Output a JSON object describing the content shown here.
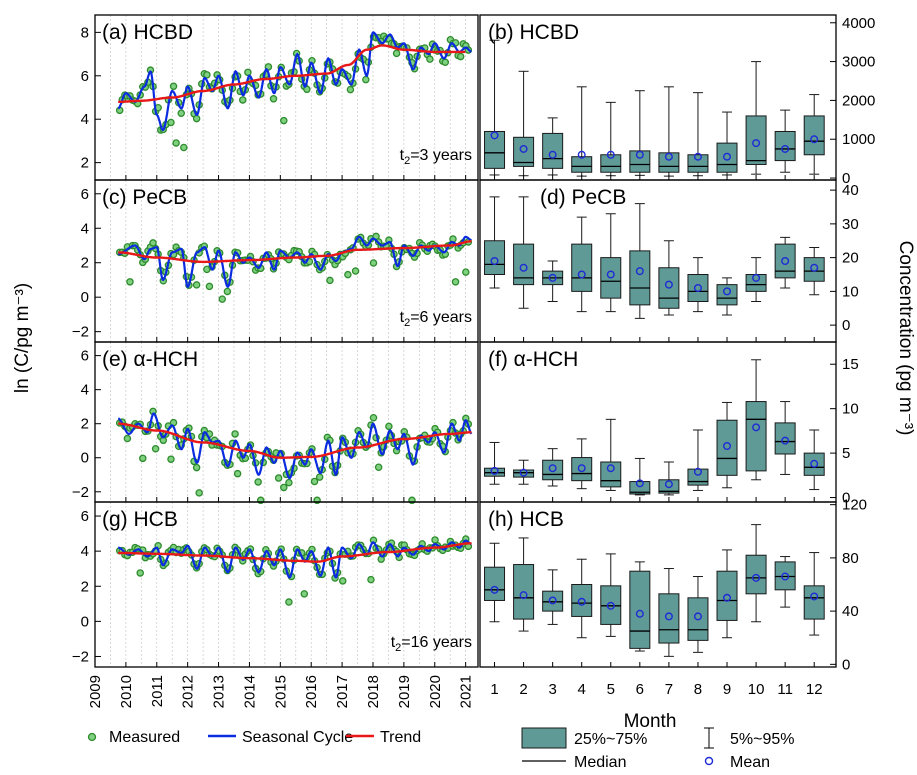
{
  "chart_data": [
    {
      "id": "a",
      "type": "line",
      "panel_label": "(a) HCBD",
      "ylabel": "ln (C/pg m⁻³)",
      "ylim": [
        1.2,
        8.8
      ],
      "yticks": [
        2,
        4,
        6,
        8
      ],
      "xlim": [
        2009,
        2021.4
      ],
      "annotation": "t₂=3 years",
      "trend_nodes": {
        "x": [
          2009.75,
          2010.5,
          2011.5,
          2012.5,
          2013.5,
          2014.5,
          2015.5,
          2016.5,
          2017.2,
          2017.8,
          2018.3,
          2019,
          2020,
          2021
        ],
        "y": [
          4.8,
          4.85,
          5.0,
          5.3,
          5.6,
          5.85,
          6.0,
          6.1,
          6.5,
          7.2,
          7.4,
          7.2,
          7.1,
          7.1
        ]
      },
      "seasonal_nodes": {
        "x": [
          2009.75,
          2010,
          2010.3,
          2010.6,
          2010.8,
          2011.0,
          2011.2,
          2011.5,
          2011.8,
          2012.0,
          2012.3,
          2012.55,
          2012.8,
          2013.0,
          2013.3,
          2013.55,
          2013.8,
          2014.0,
          2014.3,
          2014.55,
          2014.8,
          2015.0,
          2015.3,
          2015.55,
          2015.8,
          2016.0,
          2016.3,
          2016.55,
          2016.8,
          2017.0,
          2017.3,
          2017.55,
          2017.8,
          2018.0,
          2018.3,
          2018.55,
          2018.8,
          2019.0,
          2019.3,
          2019.55,
          2019.8,
          2020.0,
          2020.3,
          2020.55,
          2020.8,
          2021.0,
          2021.2
        ],
        "y": [
          4.5,
          5.2,
          4.8,
          5.5,
          6.2,
          4.2,
          3.5,
          5.3,
          4.5,
          5.5,
          4.2,
          5.9,
          5.3,
          6.0,
          4.5,
          6.2,
          5.1,
          6.0,
          5.0,
          6.3,
          5.2,
          6.4,
          5.6,
          7.0,
          5.5,
          6.6,
          5.2,
          6.8,
          5.6,
          6.3,
          5.6,
          7.2,
          6.0,
          8.0,
          7.5,
          7.9,
          7.3,
          7.5,
          6.3,
          7.3,
          7.0,
          7.5,
          6.8,
          7.5,
          7.1,
          7.3,
          7.1
        ]
      },
      "measured_noise": 0.32
    },
    {
      "id": "c",
      "type": "line",
      "panel_label": "(c) PeCB",
      "ylim": [
        -2.6,
        6.8
      ],
      "yticks": [
        -2,
        0,
        2,
        4,
        6
      ],
      "xlim": [
        2009,
        2021.4
      ],
      "annotation": "t₂=6 years",
      "trend_nodes": {
        "x": [
          2009.75,
          2011,
          2012.5,
          2014,
          2015.5,
          2016.5,
          2017.5,
          2019,
          2020.5,
          2021.2
        ],
        "y": [
          2.6,
          2.3,
          2.05,
          2.15,
          2.3,
          2.4,
          2.75,
          2.85,
          3.0,
          3.25
        ]
      },
      "seasonal_nodes": {
        "x": [
          2009.75,
          2010.3,
          2010.6,
          2010.8,
          2011.0,
          2011.2,
          2011.5,
          2011.8,
          2012.0,
          2012.3,
          2012.55,
          2012.8,
          2013.0,
          2013.3,
          2013.55,
          2013.8,
          2014.0,
          2014.3,
          2014.55,
          2014.8,
          2015.0,
          2015.3,
          2015.55,
          2015.8,
          2016.0,
          2016.3,
          2016.55,
          2016.8,
          2017.0,
          2017.3,
          2017.55,
          2017.8,
          2018.0,
          2018.3,
          2018.55,
          2018.8,
          2019.0,
          2019.3,
          2019.55,
          2019.8,
          2020.0,
          2020.3,
          2020.55,
          2020.8,
          2021.0,
          2021.2
        ],
        "y": [
          2.5,
          3.0,
          2.2,
          2.8,
          2.9,
          1.0,
          2.6,
          2.8,
          0.6,
          2.6,
          2.9,
          1.6,
          2.7,
          0.6,
          2.6,
          2.0,
          2.3,
          1.7,
          2.6,
          1.6,
          2.7,
          2.3,
          2.6,
          2.0,
          2.5,
          1.6,
          2.5,
          2.1,
          2.6,
          2.8,
          3.5,
          3.0,
          3.4,
          3.0,
          3.2,
          1.8,
          3.0,
          2.4,
          3.0,
          2.7,
          3.0,
          2.6,
          3.2,
          3.0,
          3.5,
          3.3
        ]
      },
      "measured_noise": 0.3
    },
    {
      "id": "e",
      "type": "line",
      "panel_label": "(e) α-HCH",
      "ylim": [
        -2.6,
        6.8
      ],
      "yticks": [
        -2,
        0,
        2,
        4,
        6
      ],
      "xlim": [
        2009,
        2021.4
      ],
      "annotation": "",
      "trend_nodes": {
        "x": [
          2009.75,
          2011,
          2012.5,
          2014,
          2015,
          2016,
          2017.5,
          2019,
          2020.5,
          2021.2
        ],
        "y": [
          2.0,
          1.6,
          0.9,
          0.4,
          0.0,
          0.05,
          0.6,
          1.1,
          1.4,
          1.5
        ]
      },
      "seasonal_nodes": {
        "x": [
          2009.75,
          2010.1,
          2010.4,
          2010.7,
          2010.9,
          2011.2,
          2011.5,
          2011.8,
          2012.0,
          2012.3,
          2012.55,
          2012.8,
          2013.0,
          2013.3,
          2013.55,
          2013.8,
          2014.0,
          2014.3,
          2014.55,
          2014.8,
          2015.0,
          2015.3,
          2015.55,
          2015.8,
          2016.0,
          2016.3,
          2016.55,
          2016.8,
          2017.0,
          2017.3,
          2017.55,
          2017.8,
          2018.0,
          2018.3,
          2018.55,
          2018.8,
          2019.0,
          2019.3,
          2019.55,
          2019.8,
          2020.0,
          2020.3,
          2020.55,
          2020.8,
          2021.0,
          2021.2
        ],
        "y": [
          2.3,
          1.4,
          2.0,
          1.5,
          2.6,
          1.2,
          1.9,
          0.5,
          1.7,
          -0.3,
          1.5,
          0.9,
          1.0,
          -0.5,
          1.0,
          0.0,
          0.8,
          -1.0,
          0.6,
          -0.3,
          0.4,
          -1.2,
          0.3,
          -0.4,
          0.5,
          -0.9,
          1.0,
          -1.0,
          1.2,
          0.0,
          1.5,
          0.6,
          2.0,
          0.2,
          1.6,
          0.5,
          1.4,
          -0.4,
          1.3,
          0.9,
          1.5,
          0.3,
          2.0,
          1.0,
          2.2,
          1.4
        ]
      },
      "measured_noise": 0.4
    },
    {
      "id": "g",
      "type": "line",
      "panel_label": "(g) HCB",
      "ylim": [
        -2.6,
        6.8
      ],
      "yticks": [
        -2,
        0,
        2,
        4,
        6
      ],
      "xlim": [
        2009,
        2021.4
      ],
      "annotation": "t₂=16 years",
      "xticks": [
        2009,
        2010,
        2011,
        2012,
        2013,
        2014,
        2015,
        2016,
        2017,
        2018,
        2019,
        2020,
        2021
      ],
      "trend_nodes": {
        "x": [
          2009.75,
          2011,
          2012.5,
          2014,
          2015.5,
          2016.2,
          2017,
          2018.5,
          2020,
          2021.2
        ],
        "y": [
          3.9,
          3.85,
          3.75,
          3.6,
          3.45,
          3.4,
          3.7,
          3.95,
          4.2,
          4.45
        ]
      },
      "seasonal_nodes": {
        "x": [
          2009.75,
          2010.1,
          2010.4,
          2010.7,
          2011.0,
          2011.2,
          2011.5,
          2011.8,
          2012.0,
          2012.3,
          2012.55,
          2012.8,
          2013.0,
          2013.3,
          2013.55,
          2013.8,
          2014.0,
          2014.3,
          2014.55,
          2014.8,
          2015.0,
          2015.3,
          2015.55,
          2015.8,
          2016.0,
          2016.3,
          2016.55,
          2016.8,
          2017.0,
          2017.3,
          2017.55,
          2017.8,
          2018.0,
          2018.3,
          2018.55,
          2018.8,
          2019.0,
          2019.3,
          2019.55,
          2019.8,
          2020.0,
          2020.3,
          2020.55,
          2020.8,
          2021.0,
          2021.2
        ],
        "y": [
          4.2,
          3.8,
          4.1,
          3.7,
          4.2,
          3.2,
          4.1,
          3.9,
          4.3,
          3.0,
          4.2,
          3.7,
          4.2,
          2.8,
          4.2,
          3.5,
          4.1,
          2.8,
          4.0,
          3.2,
          4.1,
          2.5,
          4.1,
          3.4,
          4.0,
          2.6,
          4.2,
          2.5,
          4.2,
          3.6,
          4.4,
          3.8,
          4.5,
          3.7,
          4.4,
          3.7,
          4.2,
          3.8,
          4.3,
          4.0,
          4.4,
          4.1,
          4.5,
          4.2,
          4.6,
          4.4
        ]
      },
      "measured_noise": 0.22
    },
    {
      "id": "b",
      "type": "box",
      "panel_label": "(b) HCBD",
      "ylim": [
        -50,
        4200
      ],
      "yticks": [
        0,
        1000,
        2000,
        3000,
        4000
      ],
      "months": [
        1,
        2,
        3,
        4,
        5,
        6,
        7,
        8,
        9,
        10,
        11,
        12
      ],
      "boxes": [
        {
          "p5": 80,
          "q1": 250,
          "med": 650,
          "q3": 1200,
          "p95": 3550,
          "mean": 1100
        },
        {
          "p5": 60,
          "q1": 300,
          "med": 400,
          "q3": 1050,
          "p95": 2750,
          "mean": 750
        },
        {
          "p5": 80,
          "q1": 250,
          "med": 500,
          "q3": 1150,
          "p95": 1550,
          "mean": 600
        },
        {
          "p5": 50,
          "q1": 150,
          "med": 300,
          "q3": 550,
          "p95": 2350,
          "mean": 600
        },
        {
          "p5": 60,
          "q1": 150,
          "med": 300,
          "q3": 600,
          "p95": 1950,
          "mean": 600
        },
        {
          "p5": 70,
          "q1": 150,
          "med": 350,
          "q3": 700,
          "p95": 2250,
          "mean": 600
        },
        {
          "p5": 50,
          "q1": 150,
          "med": 300,
          "q3": 650,
          "p95": 2350,
          "mean": 550
        },
        {
          "p5": 60,
          "q1": 150,
          "med": 300,
          "q3": 600,
          "p95": 2200,
          "mean": 550
        },
        {
          "p5": 80,
          "q1": 150,
          "med": 350,
          "q3": 900,
          "p95": 1700,
          "mean": 550
        },
        {
          "p5": 100,
          "q1": 350,
          "med": 450,
          "q3": 1600,
          "p95": 3000,
          "mean": 900
        },
        {
          "p5": 150,
          "q1": 450,
          "med": 750,
          "q3": 1200,
          "p95": 1750,
          "mean": 750
        },
        {
          "p5": 100,
          "q1": 600,
          "med": 950,
          "q3": 1600,
          "p95": 2150,
          "mean": 1000
        }
      ]
    },
    {
      "id": "d",
      "type": "box",
      "panel_label": "(d) PeCB",
      "ylim": [
        -5,
        43
      ],
      "yticks": [
        0,
        10,
        20,
        30,
        40
      ],
      "months": [
        1,
        2,
        3,
        4,
        5,
        6,
        7,
        8,
        9,
        10,
        11,
        12
      ],
      "boxes": [
        {
          "p5": 11,
          "q1": 15,
          "med": 18,
          "q3": 25,
          "p95": 38,
          "mean": 19
        },
        {
          "p5": 5,
          "q1": 12,
          "med": 14,
          "q3": 24,
          "p95": 38,
          "mean": 17
        },
        {
          "p5": 7,
          "q1": 12,
          "med": 14,
          "q3": 16,
          "p95": 19,
          "mean": 14
        },
        {
          "p5": 4,
          "q1": 10,
          "med": 14,
          "q3": 24,
          "p95": 32,
          "mean": 15
        },
        {
          "p5": 4,
          "q1": 8,
          "med": 13,
          "q3": 20,
          "p95": 33,
          "mean": 15
        },
        {
          "p5": 2,
          "q1": 6,
          "med": 11,
          "q3": 22,
          "p95": 36,
          "mean": 16
        },
        {
          "p5": 3,
          "q1": 5,
          "med": 8,
          "q3": 17,
          "p95": 25,
          "mean": 12
        },
        {
          "p5": 4,
          "q1": 7,
          "med": 10,
          "q3": 15,
          "p95": 20,
          "mean": 11
        },
        {
          "p5": 3,
          "q1": 6,
          "med": 8,
          "q3": 12,
          "p95": 14,
          "mean": 10
        },
        {
          "p5": 7,
          "q1": 10,
          "med": 12,
          "q3": 15,
          "p95": 20,
          "mean": 14
        },
        {
          "p5": 11,
          "q1": 14,
          "med": 16,
          "q3": 24,
          "p95": 26,
          "mean": 19
        },
        {
          "p5": 9,
          "q1": 13,
          "med": 16,
          "q3": 20,
          "p95": 23,
          "mean": 17
        }
      ]
    },
    {
      "id": "f",
      "type": "box",
      "panel_label": "(f) α-HCH",
      "ylim": [
        -0.5,
        17.5
      ],
      "yticks": [
        0,
        5,
        10,
        15
      ],
      "months": [
        1,
        2,
        3,
        4,
        5,
        6,
        7,
        8,
        9,
        10,
        11,
        12
      ],
      "boxes": [
        {
          "p5": 1.5,
          "q1": 2.4,
          "med": 2.8,
          "q3": 3.3,
          "p95": 6.2,
          "mean": 3.0
        },
        {
          "p5": 1.5,
          "q1": 2.3,
          "med": 2.8,
          "q3": 3.1,
          "p95": 4.2,
          "mean": 2.8
        },
        {
          "p5": 1.3,
          "q1": 2.0,
          "med": 2.6,
          "q3": 4.2,
          "p95": 5.5,
          "mean": 3.3
        },
        {
          "p5": 1.0,
          "q1": 1.9,
          "med": 2.7,
          "q3": 4.5,
          "p95": 6.6,
          "mean": 3.3
        },
        {
          "p5": 0.8,
          "q1": 1.2,
          "med": 1.9,
          "q3": 4.0,
          "p95": 8.8,
          "mean": 3.3
        },
        {
          "p5": 0.3,
          "q1": 0.4,
          "med": 0.6,
          "q3": 1.8,
          "p95": 4.4,
          "mean": 1.6
        },
        {
          "p5": 0.3,
          "q1": 0.5,
          "med": 0.7,
          "q3": 2.0,
          "p95": 4.0,
          "mean": 1.5
        },
        {
          "p5": 0.8,
          "q1": 1.4,
          "med": 1.8,
          "q3": 3.2,
          "p95": 7.6,
          "mean": 2.9
        },
        {
          "p5": 1.1,
          "q1": 2.5,
          "med": 4.4,
          "q3": 8.7,
          "p95": 10.7,
          "mean": 5.8
        },
        {
          "p5": 2.0,
          "q1": 3.0,
          "med": 8.8,
          "q3": 10.8,
          "p95": 15.5,
          "mean": 7.9
        },
        {
          "p5": 2.6,
          "q1": 4.9,
          "med": 6.3,
          "q3": 8.4,
          "p95": 10.8,
          "mean": 6.4
        },
        {
          "p5": 0.9,
          "q1": 2.5,
          "med": 3.4,
          "q3": 5.0,
          "p95": 7.6,
          "mean": 3.8
        }
      ]
    },
    {
      "id": "h",
      "type": "box",
      "panel_label": "(h) HCB",
      "ylim": [
        -2,
        122
      ],
      "yticks": [
        0,
        40,
        80,
        120
      ],
      "months": [
        1,
        2,
        3,
        4,
        5,
        6,
        7,
        8,
        9,
        10,
        11,
        12
      ],
      "xlabel": "Month",
      "boxes": [
        {
          "p5": 32,
          "q1": 48,
          "med": 56,
          "q3": 73,
          "p95": 91,
          "mean": 56
        },
        {
          "p5": 25,
          "q1": 34,
          "med": 50,
          "q3": 75,
          "p95": 95,
          "mean": 52
        },
        {
          "p5": 30,
          "q1": 40,
          "med": 47,
          "q3": 55,
          "p95": 71,
          "mean": 48
        },
        {
          "p5": 20,
          "q1": 36,
          "med": 46,
          "q3": 60,
          "p95": 79,
          "mean": 47
        },
        {
          "p5": 21,
          "q1": 30,
          "med": 44,
          "q3": 59,
          "p95": 83,
          "mean": 44
        },
        {
          "p5": 10,
          "q1": 12,
          "med": 25,
          "q3": 70,
          "p95": 77,
          "mean": 38
        },
        {
          "p5": 6,
          "q1": 16,
          "med": 26,
          "q3": 53,
          "p95": 72,
          "mean": 36
        },
        {
          "p5": 9,
          "q1": 18,
          "med": 26,
          "q3": 50,
          "p95": 66,
          "mean": 36
        },
        {
          "p5": 20,
          "q1": 33,
          "med": 48,
          "q3": 70,
          "p95": 86,
          "mean": 50
        },
        {
          "p5": 32,
          "q1": 53,
          "med": 65,
          "q3": 82,
          "p95": 105,
          "mean": 65
        },
        {
          "p5": 43,
          "q1": 56,
          "med": 66,
          "q3": 77,
          "p95": 81,
          "mean": 66
        },
        {
          "p5": 22,
          "q1": 34,
          "med": 50,
          "q3": 59,
          "p95": 84,
          "mean": 51
        }
      ]
    }
  ],
  "labels": {
    "left_ylabel": "ln (C/pg m⁻³)",
    "right_ylabel": "Concentration (pg m⁻³)",
    "month_label": "Month"
  },
  "legends": {
    "left": [
      {
        "label": "Measured",
        "kind": "circle",
        "color": "#2e8b2e",
        "fill": "#7fd07f"
      },
      {
        "label": "Seasonal Cycle",
        "kind": "line",
        "color": "#0a2be0"
      },
      {
        "label": "Trend",
        "kind": "line",
        "color": "#e81818"
      }
    ],
    "right": [
      {
        "label": "25%~75%",
        "kind": "box"
      },
      {
        "label": "5%~95%",
        "kind": "whisker"
      },
      {
        "label": "Median",
        "kind": "median"
      },
      {
        "label": "Mean",
        "kind": "mean"
      }
    ]
  },
  "colors": {
    "box_fill": "#5f9a97",
    "box_edge": "#1a1a1a",
    "measured_edge": "#2e8b2e",
    "measured_fill": "#7fd07f",
    "seasonal": "#0a2be0",
    "trend": "#e81818",
    "mean": "#1e2bd6"
  }
}
